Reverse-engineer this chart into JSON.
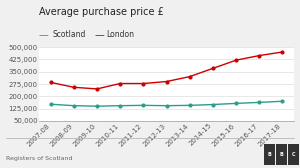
{
  "title": "Average purchase price £",
  "legend_labels": [
    "Scotland",
    "London"
  ],
  "x_labels": [
    "2007-08",
    "2008-09",
    "2009-10",
    "2010-11",
    "2011-12",
    "2012-13",
    "2013-14",
    "2014-15",
    "2015-16",
    "2016-17",
    "2017-18"
  ],
  "scotland_values": [
    152000,
    143000,
    140000,
    143000,
    145000,
    143000,
    145000,
    150000,
    157000,
    163000,
    170000
  ],
  "london_values": [
    285000,
    255000,
    245000,
    278000,
    278000,
    290000,
    320000,
    370000,
    420000,
    448000,
    470000
  ],
  "scotland_color": "#2a9d8f",
  "london_color": "#cc0000",
  "ylim": [
    50000,
    500000
  ],
  "yticks": [
    50000,
    125000,
    200000,
    275000,
    350000,
    425000,
    500000
  ],
  "ytick_labels": [
    "50,000",
    "125,000",
    "200,000",
    "275,000",
    "350,000",
    "425,000",
    "500,000"
  ],
  "source_text": "Registers of Scotland",
  "bg_color": "#f0f0f0",
  "plot_bg_color": "#ffffff",
  "title_fontsize": 7.0,
  "axis_fontsize": 5.0,
  "legend_fontsize": 5.5,
  "source_fontsize": 4.5
}
